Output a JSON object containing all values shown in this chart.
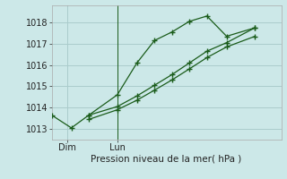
{
  "title": "Pression niveau de la mer( hPa )",
  "bg_color": "#cce8e8",
  "grid_color": "#aacccc",
  "line_color": "#1a5c1a",
  "ylim": [
    1012.5,
    1018.8
  ],
  "yticks": [
    1013,
    1014,
    1015,
    1016,
    1017,
    1018
  ],
  "xlabel_left": "Dim",
  "xlabel_right": "Lun",
  "vline_x": 3.0,
  "xlim": [
    0.0,
    10.5
  ],
  "dim_x": 0.7,
  "lun_x": 3.0,
  "line1_x": [
    0.0,
    0.9,
    1.7,
    3.0,
    3.9,
    4.7,
    5.5,
    6.3,
    7.1,
    8.0,
    9.3
  ],
  "line1_y": [
    1013.65,
    1013.05,
    1013.65,
    1014.6,
    1016.1,
    1017.15,
    1017.55,
    1018.05,
    1018.3,
    1017.35,
    1017.75
  ],
  "line2_x": [
    1.7,
    3.0,
    3.9,
    4.7,
    5.5,
    6.3,
    7.1,
    8.0,
    9.3
  ],
  "line2_y": [
    1013.65,
    1014.05,
    1014.55,
    1015.05,
    1015.55,
    1016.1,
    1016.65,
    1017.05,
    1017.75
  ],
  "line3_x": [
    1.7,
    3.0,
    3.9,
    4.7,
    5.5,
    6.3,
    7.1,
    8.0,
    9.3
  ],
  "line3_y": [
    1013.45,
    1013.9,
    1014.35,
    1014.82,
    1015.3,
    1015.82,
    1016.35,
    1016.85,
    1017.35
  ]
}
